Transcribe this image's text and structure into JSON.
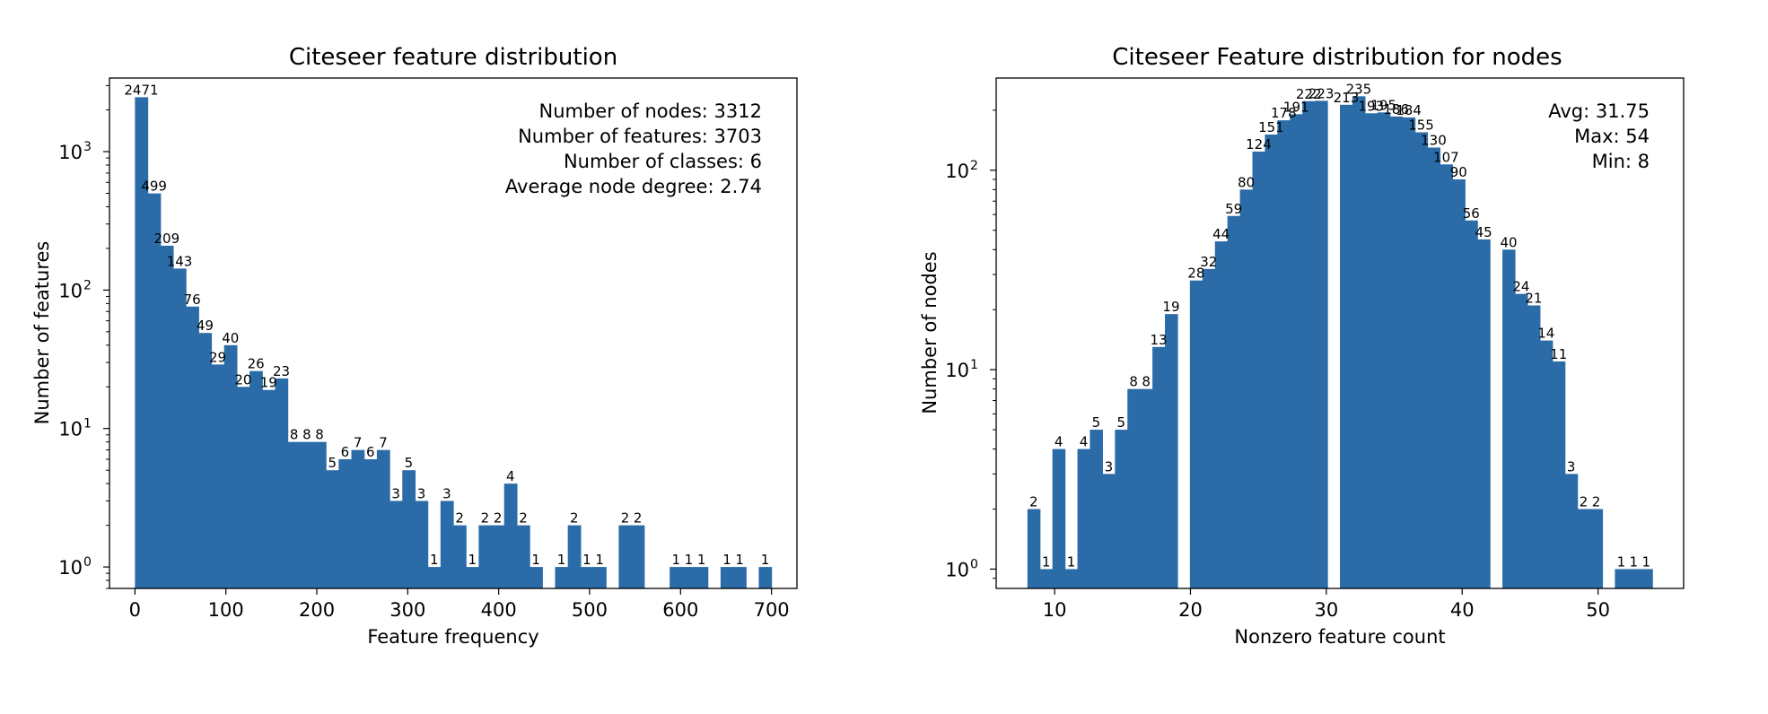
{
  "chart_data": [
    {
      "type": "bar",
      "title": "Citeseer feature distribution",
      "xlabel": "Feature frequency",
      "ylabel": "Number of features",
      "yscale": "log",
      "xlim": [
        -28,
        728
      ],
      "ylim": [
        0.7,
        3400
      ],
      "xticks": [
        0,
        100,
        200,
        300,
        400,
        500,
        600,
        700
      ],
      "yticks": [
        {
          "base": "10",
          "exp": "0",
          "value": 1
        },
        {
          "base": "10",
          "exp": "1",
          "value": 10
        },
        {
          "base": "10",
          "exp": "2",
          "value": 100
        },
        {
          "base": "10",
          "exp": "3",
          "value": 1000
        }
      ],
      "bin_width": 14,
      "bins": [
        {
          "x": 0,
          "value": 2471
        },
        {
          "x": 14,
          "value": 499
        },
        {
          "x": 28,
          "value": 209
        },
        {
          "x": 42,
          "value": 143
        },
        {
          "x": 56,
          "value": 76
        },
        {
          "x": 70,
          "value": 49
        },
        {
          "x": 84,
          "value": 29
        },
        {
          "x": 98,
          "value": 40
        },
        {
          "x": 112,
          "value": 20
        },
        {
          "x": 126,
          "value": 26
        },
        {
          "x": 140,
          "value": 19
        },
        {
          "x": 154,
          "value": 23
        },
        {
          "x": 168,
          "value": 8
        },
        {
          "x": 182,
          "value": 8
        },
        {
          "x": 196,
          "value": 8
        },
        {
          "x": 210,
          "value": 5
        },
        {
          "x": 224,
          "value": 6
        },
        {
          "x": 238,
          "value": 7
        },
        {
          "x": 252,
          "value": 6
        },
        {
          "x": 266,
          "value": 7
        },
        {
          "x": 280,
          "value": 3
        },
        {
          "x": 294,
          "value": 5
        },
        {
          "x": 308,
          "value": 3
        },
        {
          "x": 322,
          "value": 1
        },
        {
          "x": 336,
          "value": 3
        },
        {
          "x": 350,
          "value": 2
        },
        {
          "x": 364,
          "value": 1
        },
        {
          "x": 378,
          "value": 2
        },
        {
          "x": 392,
          "value": 2
        },
        {
          "x": 406,
          "value": 4
        },
        {
          "x": 420,
          "value": 2
        },
        {
          "x": 434,
          "value": 1
        },
        {
          "x": 462,
          "value": 1
        },
        {
          "x": 476,
          "value": 2
        },
        {
          "x": 490,
          "value": 1
        },
        {
          "x": 504,
          "value": 1
        },
        {
          "x": 532,
          "value": 2
        },
        {
          "x": 546,
          "value": 2
        },
        {
          "x": 588,
          "value": 1
        },
        {
          "x": 602,
          "value": 1
        },
        {
          "x": 616,
          "value": 1
        },
        {
          "x": 644,
          "value": 1
        },
        {
          "x": 658,
          "value": 1
        },
        {
          "x": 686,
          "value": 1
        }
      ],
      "annotations": [
        "Number of nodes: 3312",
        "Number of features: 3703",
        "Number of classes: 6",
        "Average node degree: 2.74"
      ],
      "annotation_position": "top-right",
      "bar_color": "#2b6ca8",
      "grid": false
    },
    {
      "type": "bar",
      "title": "Citeseer Feature distribution for nodes",
      "xlabel": "Nonzero feature count",
      "ylabel": "Number of nodes",
      "yscale": "log",
      "xlim": [
        5.7,
        56.3
      ],
      "ylim": [
        0.8,
        290
      ],
      "xticks": [
        10,
        20,
        30,
        40,
        50
      ],
      "yticks": [
        {
          "base": "10",
          "exp": "0",
          "value": 1
        },
        {
          "base": "10",
          "exp": "1",
          "value": 10
        },
        {
          "base": "10",
          "exp": "2",
          "value": 100
        }
      ],
      "bin_width": 0.92,
      "bins": [
        {
          "x": 8.0,
          "value": 2
        },
        {
          "x": 8.92,
          "value": 1
        },
        {
          "x": 9.84,
          "value": 4
        },
        {
          "x": 10.76,
          "value": 1
        },
        {
          "x": 11.68,
          "value": 4
        },
        {
          "x": 12.6,
          "value": 5
        },
        {
          "x": 13.52,
          "value": 3
        },
        {
          "x": 14.44,
          "value": 5
        },
        {
          "x": 15.36,
          "value": 8
        },
        {
          "x": 16.28,
          "value": 8
        },
        {
          "x": 17.2,
          "value": 13
        },
        {
          "x": 18.12,
          "value": 19
        },
        {
          "x": 19.96,
          "value": 28
        },
        {
          "x": 20.88,
          "value": 32
        },
        {
          "x": 21.8,
          "value": 44
        },
        {
          "x": 22.72,
          "value": 59
        },
        {
          "x": 23.64,
          "value": 80
        },
        {
          "x": 24.56,
          "value": 124
        },
        {
          "x": 25.48,
          "value": 151
        },
        {
          "x": 26.4,
          "value": 178
        },
        {
          "x": 27.32,
          "value": 191
        },
        {
          "x": 28.24,
          "value": 222
        },
        {
          "x": 29.16,
          "value": 223
        },
        {
          "x": 31.0,
          "value": 213
        },
        {
          "x": 31.92,
          "value": 235
        },
        {
          "x": 32.84,
          "value": 193
        },
        {
          "x": 33.76,
          "value": 195
        },
        {
          "x": 34.68,
          "value": 186
        },
        {
          "x": 35.6,
          "value": 184
        },
        {
          "x": 36.52,
          "value": 155
        },
        {
          "x": 37.44,
          "value": 130
        },
        {
          "x": 38.36,
          "value": 107
        },
        {
          "x": 39.28,
          "value": 90
        },
        {
          "x": 40.2,
          "value": 56
        },
        {
          "x": 41.12,
          "value": 45
        },
        {
          "x": 42.96,
          "value": 40
        },
        {
          "x": 43.88,
          "value": 24
        },
        {
          "x": 44.8,
          "value": 21
        },
        {
          "x": 45.72,
          "value": 14
        },
        {
          "x": 46.64,
          "value": 11
        },
        {
          "x": 47.56,
          "value": 3
        },
        {
          "x": 48.48,
          "value": 2
        },
        {
          "x": 49.4,
          "value": 2
        },
        {
          "x": 51.24,
          "value": 1
        },
        {
          "x": 52.16,
          "value": 1
        },
        {
          "x": 53.08,
          "value": 1
        }
      ],
      "annotations": [
        "Avg: 31.75",
        "Max: 54",
        "Min: 8"
      ],
      "annotation_position": "top-right",
      "bar_color": "#2b6ca8",
      "grid": false
    }
  ]
}
